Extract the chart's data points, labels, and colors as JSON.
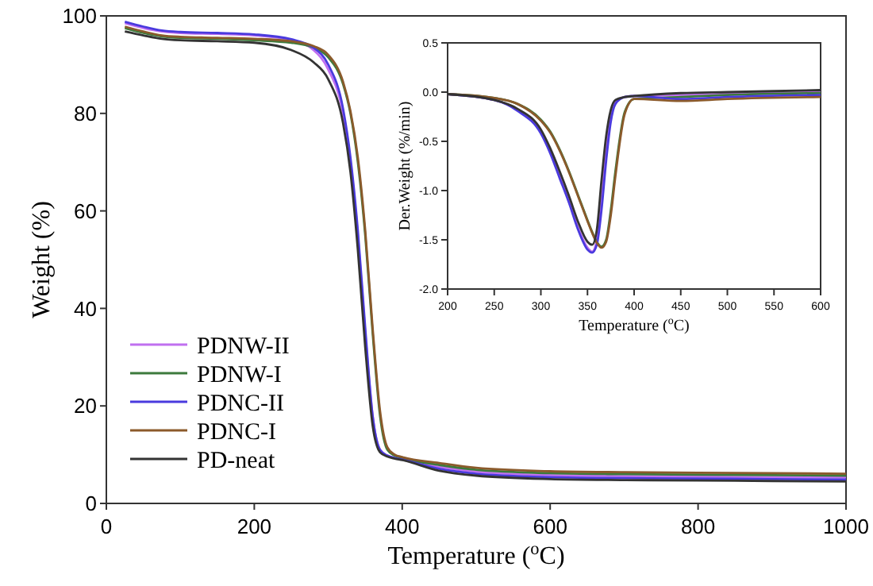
{
  "chart_data": [
    {
      "type": "line",
      "xlabel": "Temperature ($^{o}$C)",
      "ylabel": "Weight (%)",
      "x": [
        25,
        50,
        75,
        100,
        150,
        200,
        250,
        280,
        300,
        320,
        330,
        340,
        350,
        360,
        370,
        380,
        390,
        400,
        450,
        500,
        600,
        700,
        800,
        900,
        1000
      ],
      "xlim": [
        0,
        1000
      ],
      "xticks": [
        0,
        200,
        400,
        600,
        800,
        1000
      ],
      "ylim": [
        0,
        100
      ],
      "yticks": [
        0,
        20,
        40,
        60,
        80,
        100
      ],
      "legend": "bottom left",
      "grid": false,
      "series": [
        {
          "name": "PDNW-II",
          "color": "#c070f0",
          "values": [
            98.5,
            97.5,
            96.8,
            96.5,
            96.3,
            96,
            95,
            93,
            89,
            80,
            70,
            55,
            35,
            18,
            11,
            9.8,
            9.3,
            9,
            7.5,
            6.5,
            5.8,
            5.6,
            5.5,
            5.4,
            5.3
          ]
        },
        {
          "name": "PDNW-I",
          "color": "#3c7a3c",
          "values": [
            97.5,
            96.5,
            95.8,
            95.5,
            95.3,
            95,
            94.5,
            93.5,
            91.5,
            86,
            80,
            70,
            55,
            35,
            18,
            11,
            9.8,
            9.3,
            7.9,
            6.9,
            6.2,
            6.0,
            5.9,
            5.8,
            5.7
          ]
        },
        {
          "name": "PDNC-II",
          "color": "#4a3ade",
          "values": [
            98.8,
            97.8,
            97,
            96.7,
            96.5,
            96.2,
            95.2,
            93.5,
            90,
            81,
            71,
            56,
            36,
            18,
            11,
            9.8,
            9.3,
            9,
            7.1,
            6.1,
            5.4,
            5.2,
            5.1,
            5.0,
            4.9
          ]
        },
        {
          "name": "PDNC-I",
          "color": "#8b5a2b",
          "values": [
            97.8,
            96.8,
            96,
            95.7,
            95.5,
            95.3,
            94.8,
            93.8,
            92,
            86.5,
            80.5,
            71,
            56,
            36,
            19,
            11.5,
            10,
            9.5,
            8.3,
            7.3,
            6.6,
            6.4,
            6.3,
            6.2,
            6.1
          ]
        },
        {
          "name": "PD-neat",
          "color": "#333333",
          "values": [
            96.8,
            96,
            95.3,
            95,
            94.8,
            94.5,
            93,
            90.5,
            87,
            78,
            68,
            52,
            32,
            16,
            10.5,
            9.6,
            9.2,
            8.9,
            6.7,
            5.7,
            5.0,
            4.8,
            4.7,
            4.6,
            4.5
          ]
        }
      ]
    },
    {
      "type": "line",
      "xlabel": "Temperature ($^{o}$C)",
      "ylabel": "Der.Weight (%/min)",
      "x": [
        200,
        250,
        275,
        300,
        310,
        320,
        330,
        340,
        350,
        355,
        360,
        365,
        370,
        375,
        380,
        390,
        400,
        450,
        500,
        600
      ],
      "xlim": [
        200,
        600
      ],
      "xticks": [
        200,
        250,
        300,
        350,
        400,
        450,
        500,
        550,
        600
      ],
      "ylim": [
        -2,
        0.5
      ],
      "yticks": [
        {
          "value": -2,
          "label": "-2.0"
        },
        {
          "value": -1.5,
          "label": "-1.5"
        },
        {
          "value": -1,
          "label": "-1.0"
        },
        {
          "value": -0.5,
          "label": "-0.5"
        },
        {
          "value": 0,
          "label": "0.0"
        },
        {
          "value": 0.5,
          "label": "0.5"
        }
      ],
      "grid": false,
      "series": [
        {
          "color": "#c070f0",
          "values": [
            -0.02,
            -0.08,
            -0.18,
            -0.4,
            -0.6,
            -0.85,
            -1.1,
            -1.38,
            -1.58,
            -1.62,
            -1.5,
            -1.1,
            -0.6,
            -0.25,
            -0.1,
            -0.05,
            -0.04,
            -0.03,
            -0.02,
            0
          ]
        },
        {
          "color": "#3c7a3c",
          "values": [
            -0.02,
            -0.06,
            -0.12,
            -0.28,
            -0.4,
            -0.58,
            -0.8,
            -1.05,
            -1.3,
            -1.42,
            -1.52,
            -1.57,
            -1.5,
            -1.2,
            -0.8,
            -0.2,
            -0.07,
            -0.05,
            -0.03,
            -0.01
          ]
        },
        {
          "color": "#4a3ade",
          "values": [
            -0.02,
            -0.08,
            -0.19,
            -0.42,
            -0.62,
            -0.87,
            -1.12,
            -1.4,
            -1.6,
            -1.63,
            -1.55,
            -1.2,
            -0.7,
            -0.3,
            -0.12,
            -0.05,
            -0.04,
            -0.07,
            -0.05,
            -0.03
          ]
        },
        {
          "color": "#8b5a2b",
          "values": [
            -0.02,
            -0.06,
            -0.12,
            -0.29,
            -0.41,
            -0.59,
            -0.81,
            -1.06,
            -1.31,
            -1.43,
            -1.53,
            -1.58,
            -1.52,
            -1.25,
            -0.85,
            -0.22,
            -0.07,
            -0.09,
            -0.07,
            -0.05
          ]
        },
        {
          "color": "#333333",
          "values": [
            -0.02,
            -0.08,
            -0.17,
            -0.38,
            -0.57,
            -0.8,
            -1.05,
            -1.32,
            -1.52,
            -1.55,
            -1.4,
            -0.9,
            -0.45,
            -0.18,
            -0.08,
            -0.05,
            -0.04,
            -0.01,
            0,
            0.02
          ]
        }
      ]
    }
  ]
}
